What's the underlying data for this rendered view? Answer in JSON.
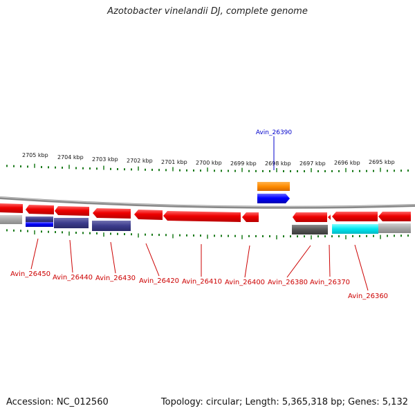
{
  "title": "Azotobacter vinelandii DJ, complete genome",
  "accession_text": "Accession: NC_012560",
  "summary_text": "Topology: circular; Length: 5,365,318 bp; Genes: 5,132",
  "scale_unit": "kbp",
  "scale_ticks": [
    "2705 kbp",
    "2704 kbp",
    "2703 kbp",
    "2702 kbp",
    "2701 kbp",
    "2700 kbp",
    "2699 kbp",
    "2698 kbp",
    "2697 kbp",
    "2696 kbp",
    "2695 kbp"
  ],
  "highlighted_gene": {
    "label": "Avin_26390",
    "color": "#0000cc",
    "strand": "+"
  },
  "minus_strand_genes": [
    "Avin_26450",
    "Avin_26440",
    "Avin_26430",
    "Avin_26420",
    "Avin_26410",
    "Avin_26400",
    "Avin_26380",
    "Avin_26370",
    "Avin_26360"
  ],
  "colors": {
    "gene_minus": "#e8000b",
    "gene_plus": "#0000ff",
    "gene_orange": "#ff8c00",
    "label_minus": "#cc0000",
    "label_plus": "#0000cc",
    "tick": "#1a7a1a",
    "backbone": "#888888",
    "domain_navy": "#3b3b8c",
    "domain_gray": "#a8a8a8",
    "domain_dark": "#555555",
    "domain_cyan": "#00e5ee"
  }
}
